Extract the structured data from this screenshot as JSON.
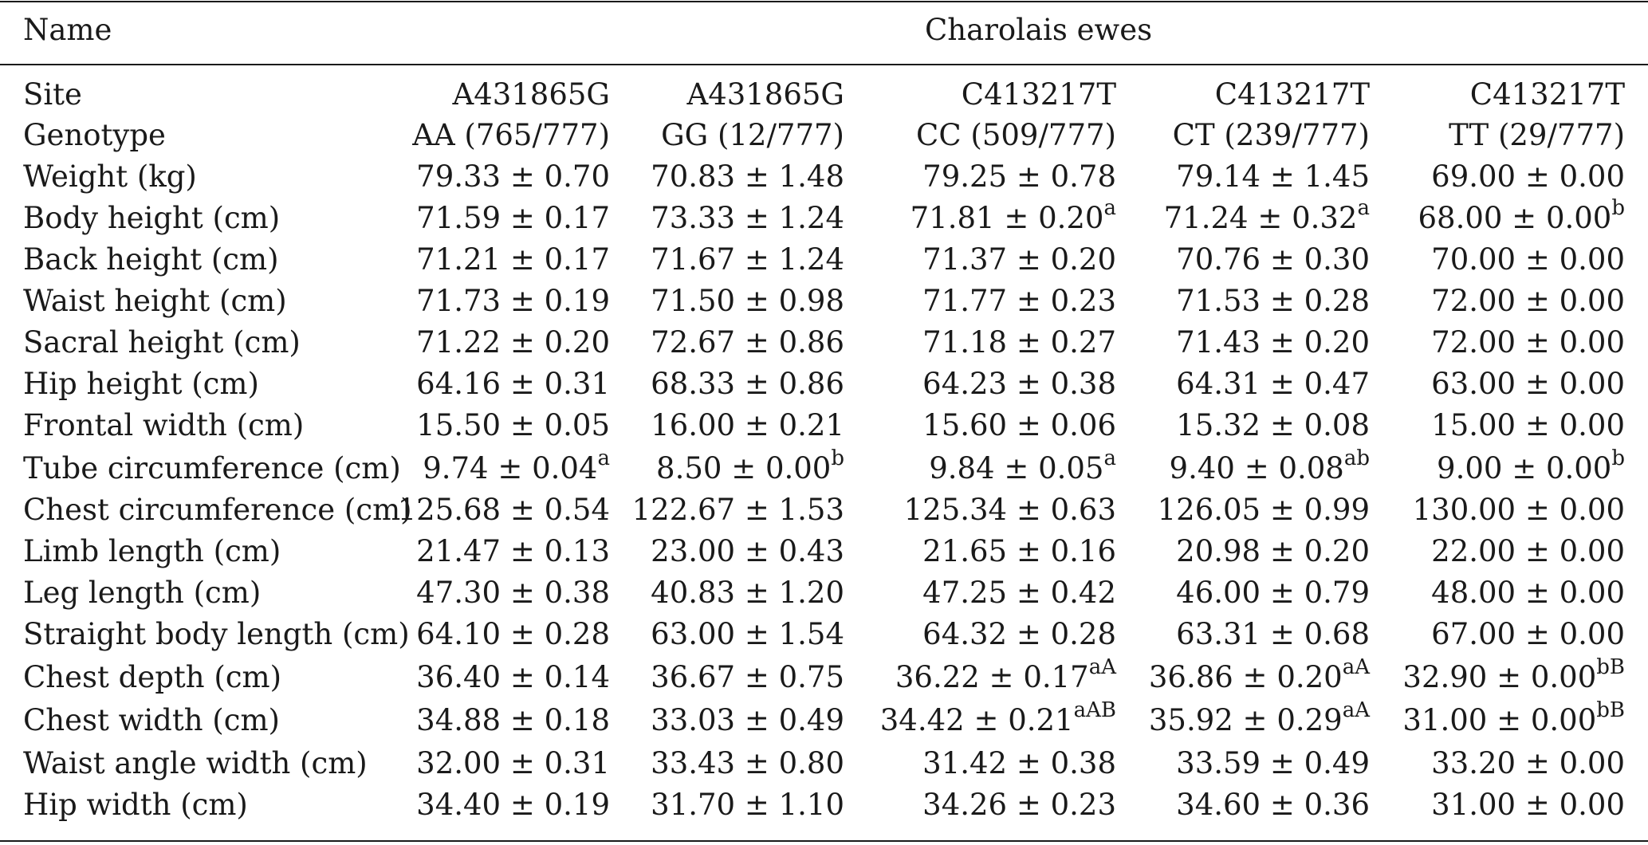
{
  "table": {
    "header": {
      "name_label": "Name",
      "group_label": "Charolais ewes"
    },
    "rows": [
      {
        "label": "Site",
        "cells": [
          {
            "v": "A431865G",
            "s": ""
          },
          {
            "v": "A431865G",
            "s": ""
          },
          {
            "v": "C413217T",
            "s": ""
          },
          {
            "v": "C413217T",
            "s": ""
          },
          {
            "v": "C413217T",
            "s": ""
          }
        ]
      },
      {
        "label": "Genotype",
        "cells": [
          {
            "v": "AA (765/777)",
            "s": ""
          },
          {
            "v": "GG (12/777)",
            "s": ""
          },
          {
            "v": "CC (509/777)",
            "s": ""
          },
          {
            "v": "CT (239/777)",
            "s": ""
          },
          {
            "v": "TT (29/777)",
            "s": ""
          }
        ]
      },
      {
        "label": "Weight (kg)",
        "cells": [
          {
            "v": "79.33 ± 0.70",
            "s": ""
          },
          {
            "v": "70.83 ± 1.48",
            "s": ""
          },
          {
            "v": "79.25 ± 0.78",
            "s": ""
          },
          {
            "v": "79.14 ± 1.45",
            "s": ""
          },
          {
            "v": "69.00 ± 0.00",
            "s": ""
          }
        ]
      },
      {
        "label": "Body height (cm)",
        "cells": [
          {
            "v": "71.59 ± 0.17",
            "s": ""
          },
          {
            "v": "73.33 ± 1.24",
            "s": ""
          },
          {
            "v": "71.81 ± 0.20",
            "s": "a"
          },
          {
            "v": "71.24 ± 0.32",
            "s": "a"
          },
          {
            "v": "68.00 ± 0.00",
            "s": "b"
          }
        ]
      },
      {
        "label": "Back height (cm)",
        "cells": [
          {
            "v": "71.21 ± 0.17",
            "s": ""
          },
          {
            "v": "71.67 ± 1.24",
            "s": ""
          },
          {
            "v": "71.37 ± 0.20",
            "s": ""
          },
          {
            "v": "70.76 ± 0.30",
            "s": ""
          },
          {
            "v": "70.00 ± 0.00",
            "s": ""
          }
        ]
      },
      {
        "label": "Waist height (cm)",
        "cells": [
          {
            "v": "71.73 ± 0.19",
            "s": ""
          },
          {
            "v": "71.50 ± 0.98",
            "s": ""
          },
          {
            "v": "71.77 ± 0.23",
            "s": ""
          },
          {
            "v": "71.53 ± 0.28",
            "s": ""
          },
          {
            "v": "72.00 ± 0.00",
            "s": ""
          }
        ]
      },
      {
        "label": "Sacral height (cm)",
        "cells": [
          {
            "v": "71.22 ± 0.20",
            "s": ""
          },
          {
            "v": "72.67 ± 0.86",
            "s": ""
          },
          {
            "v": "71.18 ± 0.27",
            "s": ""
          },
          {
            "v": "71.43 ± 0.20",
            "s": ""
          },
          {
            "v": "72.00 ± 0.00",
            "s": ""
          }
        ]
      },
      {
        "label": "Hip height (cm)",
        "cells": [
          {
            "v": "64.16 ± 0.31",
            "s": ""
          },
          {
            "v": "68.33 ± 0.86",
            "s": ""
          },
          {
            "v": "64.23 ± 0.38",
            "s": ""
          },
          {
            "v": "64.31 ± 0.47",
            "s": ""
          },
          {
            "v": "63.00 ± 0.00",
            "s": ""
          }
        ]
      },
      {
        "label": "Frontal width (cm)",
        "cells": [
          {
            "v": "15.50 ± 0.05",
            "s": ""
          },
          {
            "v": "16.00 ± 0.21",
            "s": ""
          },
          {
            "v": "15.60 ± 0.06",
            "s": ""
          },
          {
            "v": "15.32 ± 0.08",
            "s": ""
          },
          {
            "v": "15.00 ± 0.00",
            "s": ""
          }
        ]
      },
      {
        "label": "Tube circumference (cm)",
        "cells": [
          {
            "v": "9.74 ± 0.04",
            "s": "a"
          },
          {
            "v": "8.50 ± 0.00",
            "s": "b"
          },
          {
            "v": "9.84 ± 0.05",
            "s": "a"
          },
          {
            "v": "9.40 ± 0.08",
            "s": "ab"
          },
          {
            "v": "9.00 ± 0.00",
            "s": "b"
          }
        ]
      },
      {
        "label": "Chest circumference (cm)",
        "cells": [
          {
            "v": "125.68 ± 0.54",
            "s": ""
          },
          {
            "v": "122.67 ± 1.53",
            "s": ""
          },
          {
            "v": "125.34 ± 0.63",
            "s": ""
          },
          {
            "v": "126.05 ± 0.99",
            "s": ""
          },
          {
            "v": "130.00 ± 0.00",
            "s": ""
          }
        ]
      },
      {
        "label": "Limb length (cm)",
        "cells": [
          {
            "v": "21.47 ± 0.13",
            "s": ""
          },
          {
            "v": "23.00 ± 0.43",
            "s": ""
          },
          {
            "v": "21.65 ± 0.16",
            "s": ""
          },
          {
            "v": "20.98 ± 0.20",
            "s": ""
          },
          {
            "v": "22.00 ± 0.00",
            "s": ""
          }
        ]
      },
      {
        "label": "Leg length (cm)",
        "cells": [
          {
            "v": "47.30 ± 0.38",
            "s": ""
          },
          {
            "v": "40.83 ± 1.20",
            "s": ""
          },
          {
            "v": "47.25 ± 0.42",
            "s": ""
          },
          {
            "v": "46.00 ± 0.79",
            "s": ""
          },
          {
            "v": "48.00 ± 0.00",
            "s": ""
          }
        ]
      },
      {
        "label": "Straight body length (cm)",
        "cells": [
          {
            "v": "64.10 ± 0.28",
            "s": ""
          },
          {
            "v": "63.00 ± 1.54",
            "s": ""
          },
          {
            "v": "64.32 ± 0.28",
            "s": ""
          },
          {
            "v": "63.31 ± 0.68",
            "s": ""
          },
          {
            "v": "67.00 ± 0.00",
            "s": ""
          }
        ]
      },
      {
        "label": "Chest depth (cm)",
        "cells": [
          {
            "v": "36.40 ± 0.14",
            "s": ""
          },
          {
            "v": "36.67 ± 0.75",
            "s": ""
          },
          {
            "v": "36.22 ± 0.17",
            "s": "aA"
          },
          {
            "v": "36.86 ± 0.20",
            "s": "aA"
          },
          {
            "v": "32.90 ± 0.00",
            "s": "bB"
          }
        ]
      },
      {
        "label": "Chest width (cm)",
        "cells": [
          {
            "v": "34.88 ± 0.18",
            "s": ""
          },
          {
            "v": "33.03 ± 0.49",
            "s": ""
          },
          {
            "v": "34.42 ± 0.21",
            "s": "aAB"
          },
          {
            "v": "35.92 ± 0.29",
            "s": "aA"
          },
          {
            "v": "31.00 ± 0.00",
            "s": "bB"
          }
        ]
      },
      {
        "label": "Waist angle width (cm)",
        "cells": [
          {
            "v": "32.00 ± 0.31",
            "s": ""
          },
          {
            "v": "33.43 ± 0.80",
            "s": ""
          },
          {
            "v": "31.42 ± 0.38",
            "s": ""
          },
          {
            "v": "33.59 ± 0.49",
            "s": ""
          },
          {
            "v": "33.20 ± 0.00",
            "s": ""
          }
        ]
      },
      {
        "label": "Hip width (cm)",
        "cells": [
          {
            "v": "34.40 ± 0.19",
            "s": ""
          },
          {
            "v": "31.70 ± 1.10",
            "s": ""
          },
          {
            "v": "34.26 ± 0.23",
            "s": ""
          },
          {
            "v": "34.60 ± 0.36",
            "s": ""
          },
          {
            "v": "31.00 ± 0.00",
            "s": ""
          }
        ]
      }
    ]
  }
}
